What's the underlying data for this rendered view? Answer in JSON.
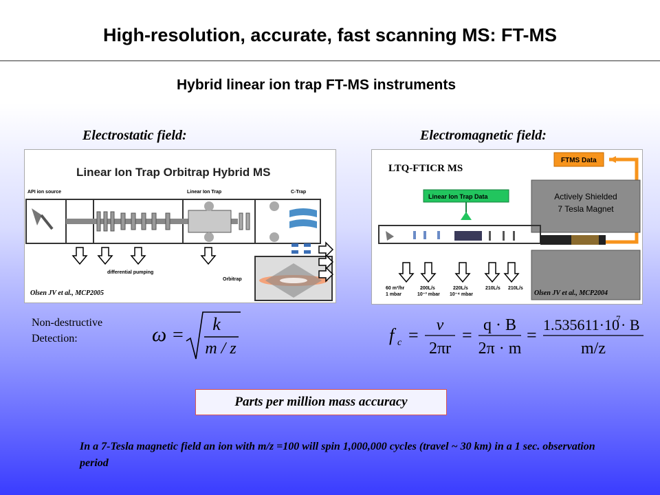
{
  "title": "High-resolution, accurate, fast scanning MS: FT-MS",
  "subtitle": "Hybrid linear ion trap FT-MS instruments",
  "left": {
    "label": "Electrostatic field:",
    "diagram_title": "Linear Ion Trap Orbitrap Hybrid MS",
    "api_source": "API ion source",
    "linear_ion_trap": "Linear Ion Trap",
    "c_trap": "C-Trap",
    "differential_pumping": "differential pumping",
    "orbitrap": "Orbitrap",
    "citation": "Olsen JV et al., MCP2005",
    "detection_label": "Non-destructive",
    "detection_label2": "Detection:"
  },
  "right": {
    "label": "Electromagnetic field:",
    "instrument": "LTQ-FTICR MS",
    "ftms_data": "FTMS Data",
    "lit_data": "Linear Ion Trap Data",
    "magnet_line1": "Actively Shielded",
    "magnet_line2": "7 Tesla Magnet",
    "citation": "Olsen JV et al., MCP2004",
    "pumps": [
      {
        "flow": "60 m³/hr",
        "pressure": "1 mbar"
      },
      {
        "flow": "200L/s",
        "pressure": "10⁻³ mbar"
      },
      {
        "flow": "220L/s",
        "pressure": "10⁻⁴ mbar"
      },
      {
        "flow": "210L/s",
        "pressure": ""
      },
      {
        "flow": "210L/s",
        "pressure": ""
      }
    ]
  },
  "formula_left": {
    "omega": "ω",
    "equals": "=",
    "k": "k",
    "mz": "m / z"
  },
  "formula_right": {
    "fc": "f",
    "fc_sub": "c",
    "eq": "=",
    "v": "v",
    "two_pi_r": "2πr",
    "qB": "q · B",
    "two_pi_m": "2π · m",
    "const": "1.535611·10",
    "const_exp": "7",
    "const_B": " · B",
    "mz": "m/z"
  },
  "ppm": "Parts per million mass accuracy",
  "note": "In a 7-Tesla magnetic field an ion with m/z =100 will spin 1,000,000 cycles (travel ~ 30 km) in a 1 sec. observation period",
  "colors": {
    "ftms_box": "#f7941d",
    "lit_box": "#22c55e",
    "magnet_box": "#8c8c8c"
  }
}
